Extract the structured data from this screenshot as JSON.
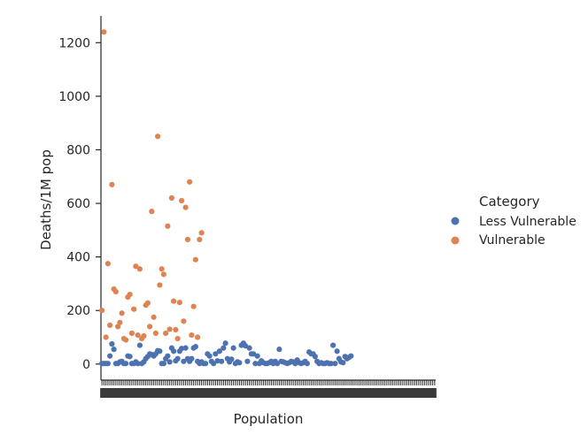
{
  "chart_data": {
    "type": "scatter",
    "title": "",
    "xlabel": "Population",
    "ylabel": "Deaths/1M pop",
    "ylim": [
      -60,
      1300
    ],
    "yticks": [
      0,
      200,
      400,
      600,
      800,
      1000,
      1200
    ],
    "grid": false,
    "x_tick_labels_note": "overlapping unreadable category labels",
    "legend": {
      "title": "Category",
      "placement": "right",
      "entries": [
        {
          "name": "Less Vulnerable",
          "color": "#4c72b0"
        },
        {
          "name": "Vulnerable",
          "color": "#dd8452"
        }
      ]
    },
    "n_categories": 168,
    "series": [
      {
        "name": "Less Vulnerable",
        "color": "#4c72b0",
        "points": [
          [
            0,
            2
          ],
          [
            1,
            2
          ],
          [
            2,
            2
          ],
          [
            3,
            2
          ],
          [
            4,
            30
          ],
          [
            5,
            75
          ],
          [
            6,
            55
          ],
          [
            7,
            2
          ],
          [
            8,
            2
          ],
          [
            9,
            8
          ],
          [
            10,
            10
          ],
          [
            11,
            2
          ],
          [
            12,
            2
          ],
          [
            13,
            30
          ],
          [
            14,
            28
          ],
          [
            15,
            2
          ],
          [
            16,
            2
          ],
          [
            17,
            8
          ],
          [
            18,
            2
          ],
          [
            19,
            70
          ],
          [
            20,
            2
          ],
          [
            21,
            8
          ],
          [
            22,
            20
          ],
          [
            23,
            28
          ],
          [
            24,
            38
          ],
          [
            25,
            35
          ],
          [
            26,
            30
          ],
          [
            27,
            38
          ],
          [
            28,
            50
          ],
          [
            29,
            48
          ],
          [
            30,
            2
          ],
          [
            31,
            2
          ],
          [
            32,
            20
          ],
          [
            33,
            30
          ],
          [
            34,
            8
          ],
          [
            35,
            60
          ],
          [
            36,
            48
          ],
          [
            37,
            12
          ],
          [
            38,
            20
          ],
          [
            39,
            48
          ],
          [
            40,
            58
          ],
          [
            41,
            10
          ],
          [
            42,
            60
          ],
          [
            43,
            20
          ],
          [
            44,
            10
          ],
          [
            45,
            20
          ],
          [
            46,
            60
          ],
          [
            47,
            65
          ],
          [
            48,
            10
          ],
          [
            49,
            2
          ],
          [
            50,
            8
          ],
          [
            51,
            2
          ],
          [
            52,
            2
          ],
          [
            53,
            38
          ],
          [
            54,
            30
          ],
          [
            55,
            10
          ],
          [
            56,
            2
          ],
          [
            57,
            38
          ],
          [
            58,
            12
          ],
          [
            59,
            48
          ],
          [
            60,
            10
          ],
          [
            61,
            60
          ],
          [
            62,
            78
          ],
          [
            63,
            20
          ],
          [
            64,
            8
          ],
          [
            65,
            18
          ],
          [
            66,
            60
          ],
          [
            67,
            2
          ],
          [
            68,
            8
          ],
          [
            69,
            5
          ],
          [
            70,
            70
          ],
          [
            71,
            78
          ],
          [
            72,
            68
          ],
          [
            73,
            10
          ],
          [
            74,
            60
          ],
          [
            75,
            38
          ],
          [
            76,
            38
          ],
          [
            77,
            2
          ],
          [
            78,
            30
          ],
          [
            79,
            2
          ],
          [
            80,
            12
          ],
          [
            81,
            5
          ],
          [
            82,
            2
          ],
          [
            83,
            2
          ],
          [
            84,
            5
          ],
          [
            85,
            10
          ],
          [
            86,
            2
          ],
          [
            87,
            10
          ],
          [
            88,
            2
          ],
          [
            89,
            55
          ],
          [
            90,
            10
          ],
          [
            91,
            8
          ],
          [
            92,
            5
          ],
          [
            93,
            2
          ],
          [
            94,
            5
          ],
          [
            95,
            10
          ],
          [
            96,
            8
          ],
          [
            97,
            2
          ],
          [
            98,
            15
          ],
          [
            99,
            5
          ],
          [
            100,
            2
          ],
          [
            101,
            5
          ],
          [
            102,
            10
          ],
          [
            103,
            2
          ],
          [
            104,
            45
          ],
          [
            105,
            38
          ],
          [
            106,
            38
          ],
          [
            107,
            28
          ],
          [
            108,
            10
          ],
          [
            109,
            2
          ],
          [
            110,
            5
          ],
          [
            111,
            2
          ],
          [
            112,
            2
          ],
          [
            113,
            5
          ],
          [
            114,
            2
          ],
          [
            115,
            2
          ],
          [
            116,
            70
          ],
          [
            117,
            2
          ],
          [
            118,
            48
          ],
          [
            119,
            20
          ],
          [
            120,
            8
          ],
          [
            121,
            5
          ],
          [
            122,
            28
          ],
          [
            123,
            20
          ],
          [
            124,
            25
          ],
          [
            125,
            30
          ]
        ]
      },
      {
        "name": "Vulnerable",
        "color": "#dd8452",
        "points": [
          [
            0,
            200
          ],
          [
            1,
            1240
          ],
          [
            2,
            100
          ],
          [
            3,
            375
          ],
          [
            4,
            145
          ],
          [
            5,
            670
          ],
          [
            6,
            280
          ],
          [
            7,
            270
          ],
          [
            8,
            140
          ],
          [
            9,
            155
          ],
          [
            10,
            190
          ],
          [
            11,
            95
          ],
          [
            12,
            90
          ],
          [
            13,
            250
          ],
          [
            14,
            260
          ],
          [
            15,
            115
          ],
          [
            16,
            205
          ],
          [
            17,
            365
          ],
          [
            18,
            108
          ],
          [
            19,
            355
          ],
          [
            20,
            95
          ],
          [
            21,
            105
          ],
          [
            22,
            220
          ],
          [
            23,
            228
          ],
          [
            24,
            140
          ],
          [
            25,
            570
          ],
          [
            26,
            175
          ],
          [
            27,
            115
          ],
          [
            28,
            850
          ],
          [
            29,
            295
          ],
          [
            30,
            355
          ],
          [
            31,
            335
          ],
          [
            32,
            115
          ],
          [
            33,
            515
          ],
          [
            34,
            130
          ],
          [
            35,
            620
          ],
          [
            36,
            235
          ],
          [
            37,
            128
          ],
          [
            38,
            95
          ],
          [
            39,
            230
          ],
          [
            40,
            610
          ],
          [
            41,
            160
          ],
          [
            42,
            585
          ],
          [
            43,
            465
          ],
          [
            44,
            680
          ],
          [
            45,
            108
          ],
          [
            46,
            215
          ],
          [
            47,
            390
          ],
          [
            48,
            100
          ],
          [
            49,
            465
          ],
          [
            50,
            490
          ]
        ]
      }
    ]
  }
}
